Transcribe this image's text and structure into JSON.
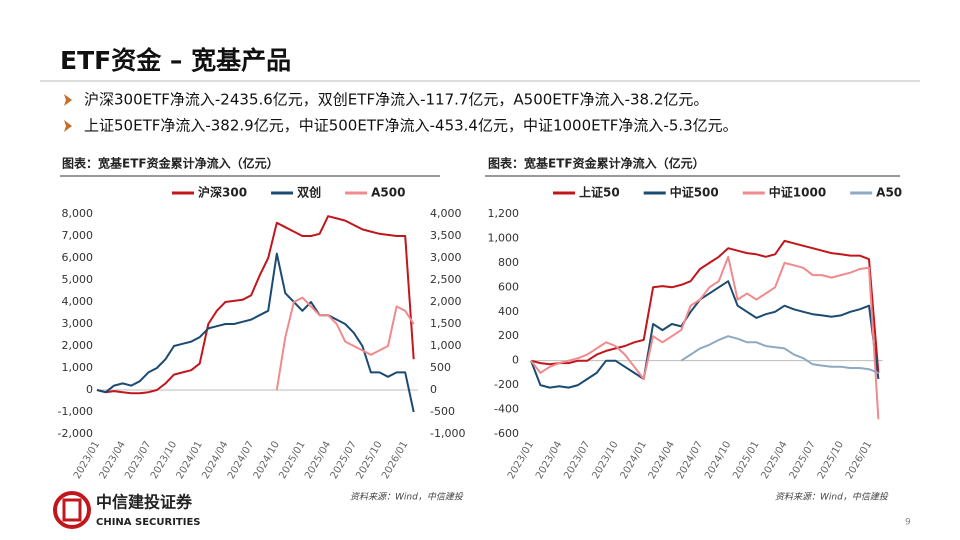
{
  "title": "ETF资金 – 宽基产品",
  "bullets": [
    "沪深300ETF净流入-2435.6亿元，双创ETF净流入-117.7亿元，A500ETF净流入-38.2亿元。",
    "上证50ETF净流入-382.9亿元，中证500ETF净流入-453.4亿元，中证1000ETF净流入-5.3亿元。"
  ],
  "logo": {
    "name": "中信建投证券",
    "english": "CHINA SECURITIES"
  },
  "page_number": "9",
  "chart_data": [
    {
      "type": "line",
      "title": "图表：宽基ETF资金累计净流入（亿元）",
      "source": "资料来源：Wind，中信建投",
      "categories": [
        "2023/01",
        null,
        null,
        "2023/04",
        null,
        null,
        "2023/07",
        null,
        null,
        "2023/10",
        null,
        null,
        "2024/01",
        null,
        null,
        "2024/04",
        null,
        null,
        "2024/07",
        null,
        null,
        "2024/10",
        null,
        null,
        "2025/01",
        null,
        null,
        "2025/04",
        null,
        null,
        "2025/07",
        null,
        null,
        "2025/10",
        null,
        null,
        "2026/01",
        null
      ],
      "ylim": [
        -2000,
        8000
      ],
      "yticks": [
        {
          "value": -2000,
          "label": "-2,000"
        },
        {
          "value": -1000,
          "label": "-1,000"
        },
        0,
        {
          "value": 1000,
          "label": "1,000"
        },
        {
          "value": 2000,
          "label": "2,000"
        },
        {
          "value": 3000,
          "label": "3,000"
        },
        {
          "value": 4000,
          "label": "4,000"
        },
        {
          "value": 5000,
          "label": "5,000"
        },
        {
          "value": 6000,
          "label": "6,000"
        },
        {
          "value": 7000,
          "label": "7,000"
        },
        {
          "value": 8000,
          "label": "8,000"
        }
      ],
      "y2lim": [
        -1000,
        4000
      ],
      "y2ticks": [
        {
          "value": -1000,
          "label": "-1,000"
        },
        -500,
        0,
        500,
        {
          "value": 1000,
          "label": "1,000"
        },
        {
          "value": 1500,
          "label": "1,500"
        },
        {
          "value": 2000,
          "label": "2,000"
        },
        {
          "value": 2500,
          "label": "2,500"
        },
        {
          "value": 3000,
          "label": "3,000"
        },
        {
          "value": 3500,
          "label": "3,500"
        },
        {
          "value": 4000,
          "label": "4,000"
        }
      ],
      "grid": false,
      "series": [
        {
          "name": "沪深300",
          "color": "#c0161c",
          "values": [
            0,
            -100,
            -50,
            -100,
            -150,
            -150,
            -100,
            0,
            300,
            700,
            800,
            900,
            1200,
            3000,
            3600,
            4000,
            4050,
            4100,
            4300,
            5200,
            6000,
            7600,
            7400,
            7200,
            7000,
            7000,
            7100,
            7900,
            7800,
            7700,
            7500,
            7300,
            7200,
            7100,
            7050,
            7000,
            7000,
            1400
          ]
        },
        {
          "name": "双创",
          "color": "#1b4a72",
          "axis": "y2",
          "values": [
            0,
            -50,
            100,
            150,
            100,
            200,
            400,
            500,
            700,
            1000,
            1050,
            1100,
            1200,
            1400,
            1450,
            1500,
            1500,
            1550,
            1600,
            1700,
            1800,
            3100,
            2200,
            2000,
            1800,
            2000,
            1700,
            1700,
            1600,
            1500,
            1300,
            1000,
            400,
            400,
            300,
            400,
            400,
            -500
          ]
        },
        {
          "name": "A500",
          "color": "#f08a8c",
          "axis": "y2",
          "values": [
            null,
            null,
            null,
            null,
            null,
            null,
            null,
            null,
            null,
            null,
            null,
            null,
            null,
            null,
            null,
            null,
            null,
            null,
            null,
            null,
            null,
            0,
            1200,
            2000,
            2100,
            1900,
            1700,
            1700,
            1500,
            1100,
            1000,
            900,
            800,
            900,
            1000,
            1900,
            1800,
            1500
          ]
        }
      ]
    },
    {
      "type": "line",
      "title": "图表：宽基ETF资金累计净流入（亿元）",
      "source": "资料来源：Wind，中信建投",
      "categories": [
        "2023/01",
        null,
        null,
        "2023/04",
        null,
        null,
        "2023/07",
        null,
        null,
        "2023/10",
        null,
        null,
        "2024/01",
        null,
        null,
        "2024/04",
        null,
        null,
        "2024/07",
        null,
        null,
        "2024/10",
        null,
        null,
        "2025/01",
        null,
        null,
        "2025/04",
        null,
        null,
        "2025/07",
        null,
        null,
        "2025/10",
        null,
        null,
        "2026/01",
        null
      ],
      "ylim": [
        -600,
        1200
      ],
      "yticks": [
        -600,
        -400,
        -200,
        0,
        200,
        400,
        600,
        800,
        {
          "value": 1000,
          "label": "1,000"
        },
        {
          "value": 1200,
          "label": "1,200"
        }
      ],
      "grid": false,
      "series": [
        {
          "name": "上证50",
          "color": "#c0161c",
          "values": [
            0,
            -20,
            -30,
            -20,
            -20,
            0,
            0,
            50,
            80,
            100,
            120,
            150,
            170,
            600,
            610,
            600,
            620,
            650,
            750,
            800,
            850,
            920,
            900,
            880,
            870,
            850,
            870,
            980,
            960,
            940,
            920,
            900,
            880,
            870,
            860,
            860,
            830,
            -100
          ]
        },
        {
          "name": "中证500",
          "color": "#1b4a72",
          "values": [
            0,
            -200,
            -220,
            -210,
            -220,
            -200,
            -150,
            -100,
            0,
            0,
            -50,
            -100,
            -150,
            300,
            250,
            300,
            280,
            400,
            500,
            550,
            600,
            650,
            450,
            400,
            350,
            380,
            400,
            450,
            420,
            400,
            380,
            370,
            360,
            370,
            400,
            420,
            450,
            -150
          ]
        },
        {
          "name": "中证1000",
          "color": "#f08a8c",
          "values": [
            0,
            -100,
            -50,
            -20,
            0,
            20,
            50,
            100,
            150,
            120,
            50,
            -50,
            -150,
            200,
            150,
            200,
            250,
            450,
            500,
            600,
            650,
            850,
            500,
            550,
            500,
            550,
            600,
            800,
            780,
            760,
            700,
            700,
            680,
            700,
            720,
            750,
            760,
            -480
          ]
        },
        {
          "name": "A50",
          "color": "#8eaac3",
          "values": [
            null,
            null,
            null,
            null,
            null,
            null,
            null,
            null,
            null,
            null,
            null,
            null,
            null,
            null,
            null,
            null,
            0,
            50,
            100,
            130,
            170,
            200,
            180,
            150,
            150,
            120,
            110,
            100,
            50,
            20,
            -30,
            -40,
            -50,
            -50,
            -60,
            -60,
            -70,
            -100
          ]
        }
      ]
    }
  ]
}
